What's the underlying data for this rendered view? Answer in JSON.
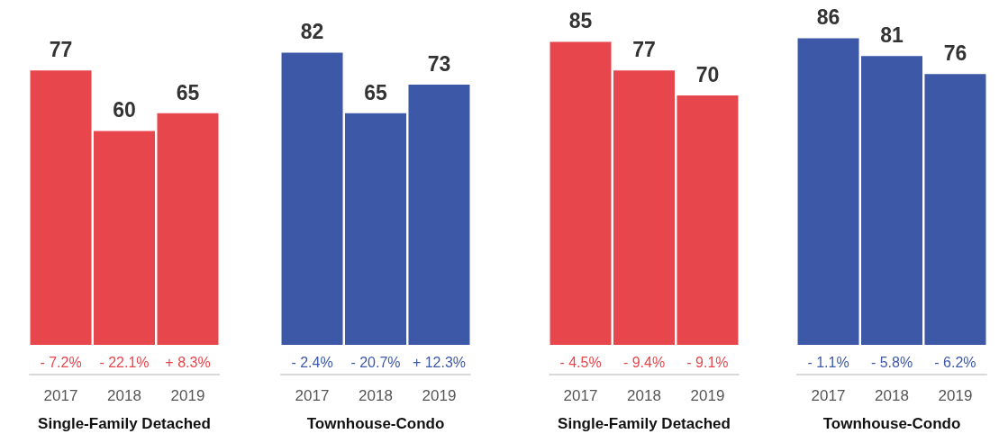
{
  "chart_data": [
    {
      "type": "bar",
      "categories": [
        "2017",
        "2018",
        "2019"
      ],
      "values": [
        77,
        60,
        65
      ],
      "color": "#e8464d",
      "xlabel": "Single-Family Detached",
      "data_labels": true,
      "tick_labels": "x",
      "grid": false,
      "legend": false,
      "annotations": [
        "- 7.2%",
        "- 22.1%",
        "+ 8.3%"
      ]
    },
    {
      "type": "bar",
      "categories": [
        "2017",
        "2018",
        "2019"
      ],
      "values": [
        82,
        65,
        73
      ],
      "color": "#3e58a8",
      "xlabel": "Townhouse-Condo",
      "data_labels": true,
      "tick_labels": "x",
      "grid": false,
      "legend": false,
      "annotations": [
        "- 2.4%",
        "- 20.7%",
        "+ 12.3%"
      ]
    },
    {
      "type": "bar",
      "categories": [
        "2017",
        "2018",
        "2019"
      ],
      "values": [
        85,
        77,
        70
      ],
      "color": "#e8464d",
      "xlabel": "Single-Family Detached",
      "data_labels": true,
      "tick_labels": "x",
      "grid": false,
      "legend": false,
      "annotations": [
        "- 4.5%",
        "- 9.4%",
        "- 9.1%"
      ]
    },
    {
      "type": "bar",
      "categories": [
        "2017",
        "2018",
        "2019"
      ],
      "values": [
        86,
        81,
        76
      ],
      "color": "#3e58a8",
      "xlabel": "Townhouse-Condo",
      "data_labels": true,
      "tick_labels": "x",
      "grid": false,
      "legend": false,
      "annotations": [
        "- 1.1%",
        "- 5.8%",
        "- 6.2%"
      ]
    }
  ]
}
